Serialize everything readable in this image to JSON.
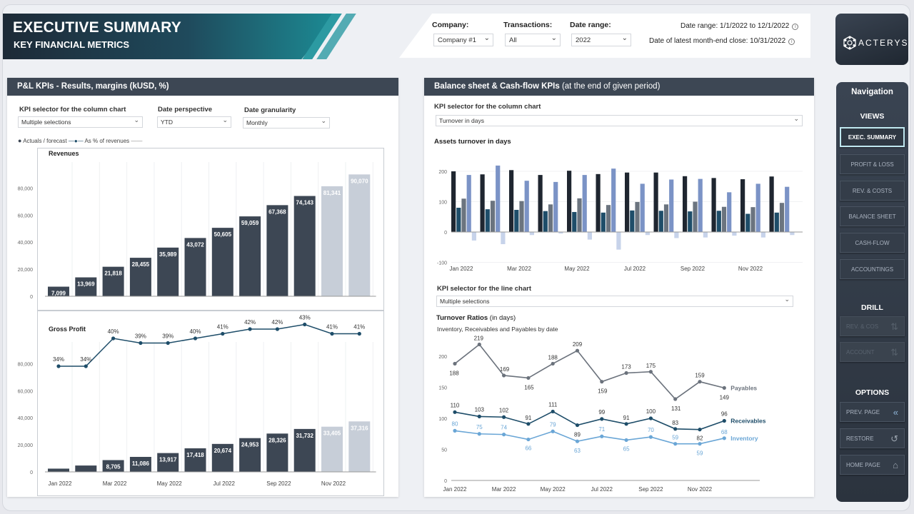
{
  "header": {
    "title": "EXECUTIVE SUMMARY",
    "subtitle": "KEY FINANCIAL METRICS",
    "filters": {
      "company_label": "Company:",
      "company_value": "Company #1",
      "transactions_label": "Transactions:",
      "transactions_value": "All",
      "daterange_label": "Date range:",
      "daterange_value": "2022"
    },
    "date_range_info": "Date range: 1/1/2022 to 12/1/2022",
    "latest_close_info": "Date of latest month-end close: 10/31/2022",
    "logo": "ACTERYS"
  },
  "pl_panel": {
    "title": "P&L KPIs - Results, margins (kUSD, %)",
    "kpi_selector_label": "KPI selector for the column chart",
    "kpi_selector_value": "Multiple selections",
    "date_perspective_label": "Date perspective",
    "date_perspective_value": "YTD",
    "date_granularity_label": "Date granularity",
    "date_granularity_value": "Monthly",
    "legend_actuals": "Actuals / forecast",
    "legend_pct": "As % of revenues"
  },
  "bs_panel": {
    "title_bold": "Balance sheet & Cash-flow KPIs",
    "title_light": "(at the end of given period)",
    "kpi_selector_label": "KPI selector for the column chart",
    "kpi_selector_value": "Turnover in days",
    "kpi_line_label": "KPI selector for the line chart",
    "kpi_line_value": "Multiple selections"
  },
  "nav": {
    "title": "Navigation",
    "views_label": "VIEWS",
    "views": [
      "EXEC. SUMMARY",
      "PROFIT & LOSS",
      "REV. & COSTS",
      "BALANCE SHEET",
      "CASH-FLOW",
      "ACCOUNTINGS"
    ],
    "drill_label": "DRILL",
    "drill": [
      "REV. & COS",
      "ACCOUNT"
    ],
    "options_label": "OPTIONS",
    "options": [
      "PREV. PAGE",
      "RESTORE",
      "HOME PAGE"
    ]
  },
  "chart_data": [
    {
      "type": "bar",
      "title": "Revenues",
      "categories": [
        "Jan 2022",
        "Feb 2022",
        "Mar 2022",
        "Apr 2022",
        "May 2022",
        "Jun 2022",
        "Jul 2022",
        "Aug 2022",
        "Sep 2022",
        "Oct 2022",
        "Nov 2022",
        "Dec 2022"
      ],
      "x_tick_labels": [
        "Jan 2022",
        "Mar 2022",
        "May 2022",
        "Jul 2022",
        "Sep 2022",
        "Nov 2022"
      ],
      "values": [
        7099,
        13969,
        21818,
        28455,
        35989,
        43072,
        50605,
        59059,
        67368,
        74143,
        81341,
        90070
      ],
      "actual_count": 10,
      "ylim": [
        0,
        95000
      ],
      "y_ticks": [
        "0",
        "20,000",
        "40,000",
        "60,000",
        "80,000"
      ],
      "colors": {
        "actual": "#3d4754",
        "forecast": "#c7ced8"
      }
    },
    {
      "type": "bar",
      "title": "Gross Profit",
      "categories": [
        "Jan 2022",
        "Feb 2022",
        "Mar 2022",
        "Apr 2022",
        "May 2022",
        "Jun 2022",
        "Jul 2022",
        "Aug 2022",
        "Sep 2022",
        "Oct 2022",
        "Nov 2022",
        "Dec 2022"
      ],
      "x_tick_labels": [
        "Jan 2022",
        "Mar 2022",
        "May 2022",
        "Jul 2022",
        "Sep 2022",
        "Nov 2022"
      ],
      "values": [
        2400,
        4700,
        8705,
        11086,
        13917,
        17418,
        20674,
        24953,
        28326,
        31732,
        33405,
        37316
      ],
      "value_labels": [
        "",
        "",
        "8,705",
        "11,086",
        "13,917",
        "17,418",
        "20,674",
        "24,953",
        "28,326",
        "31,732",
        "33,405",
        "37,316"
      ],
      "actual_count": 10,
      "ylim": [
        0,
        95000
      ],
      "y_ticks": [
        "0",
        "20,000",
        "40,000",
        "60,000",
        "80,000"
      ],
      "line_series": {
        "name": "As % of revenues",
        "values": [
          34,
          34,
          40,
          39,
          39,
          40,
          41,
          42,
          42,
          43,
          41,
          41
        ],
        "unit": "%"
      }
    },
    {
      "type": "bar",
      "title": "Assets turnover in days",
      "x_tick_labels": [
        "Jan 2022",
        "Mar 2022",
        "May 2022",
        "Jul 2022",
        "Sep 2022",
        "Nov 2022"
      ],
      "ylim": [
        -100,
        230
      ],
      "y_ticks": [
        "-100",
        "0",
        "100",
        "200"
      ],
      "series": [
        {
          "values": [
            200,
            190,
            204,
            188,
            202,
            191,
            196,
            196,
            184,
            178,
            174,
            183
          ],
          "color": "#1f2630"
        },
        {
          "values": [
            80,
            75,
            73,
            69,
            66,
            64,
            71,
            70,
            68,
            70,
            60,
            64
          ],
          "color": "#1e4d69"
        },
        {
          "values": [
            110,
            103,
            102,
            91,
            111,
            89,
            99,
            91,
            100,
            83,
            82,
            96
          ],
          "color": "#6b747f"
        },
        {
          "values": [
            188,
            219,
            169,
            165,
            188,
            209,
            159,
            173,
            175,
            131,
            159,
            149
          ],
          "color": "#7b93c6"
        },
        {
          "values": [
            -28,
            -40,
            -10,
            -5,
            -25,
            -58,
            -10,
            -20,
            -18,
            -12,
            -18,
            -10
          ],
          "color": "#c7d3ea"
        }
      ]
    },
    {
      "type": "line",
      "title": "Turnover Ratios",
      "title_suffix": "(in days)",
      "subtitle": "Inventory, Receivables and Payables by date",
      "x_tick_labels": [
        "Jan 2022",
        "Mar 2022",
        "May 2022",
        "Jul 2022",
        "Sep 2022",
        "Nov 2022"
      ],
      "ylim": [
        0,
        225
      ],
      "y_ticks": [
        "0",
        "50",
        "100",
        "150",
        "200"
      ],
      "series": [
        {
          "name": "Payables",
          "values": [
            188,
            219,
            169,
            165,
            188,
            209,
            159,
            173,
            175,
            131,
            159,
            149
          ],
          "color": "#6b727c"
        },
        {
          "name": "Receivables",
          "values": [
            110,
            103,
            102,
            91,
            111,
            89,
            99,
            91,
            100,
            83,
            82,
            96
          ],
          "color": "#1e4d69"
        },
        {
          "name": "Inventory",
          "values": [
            80,
            75,
            74,
            66,
            79,
            63,
            71,
            65,
            70,
            59,
            59,
            68
          ],
          "color": "#6aa6d6"
        }
      ]
    }
  ]
}
